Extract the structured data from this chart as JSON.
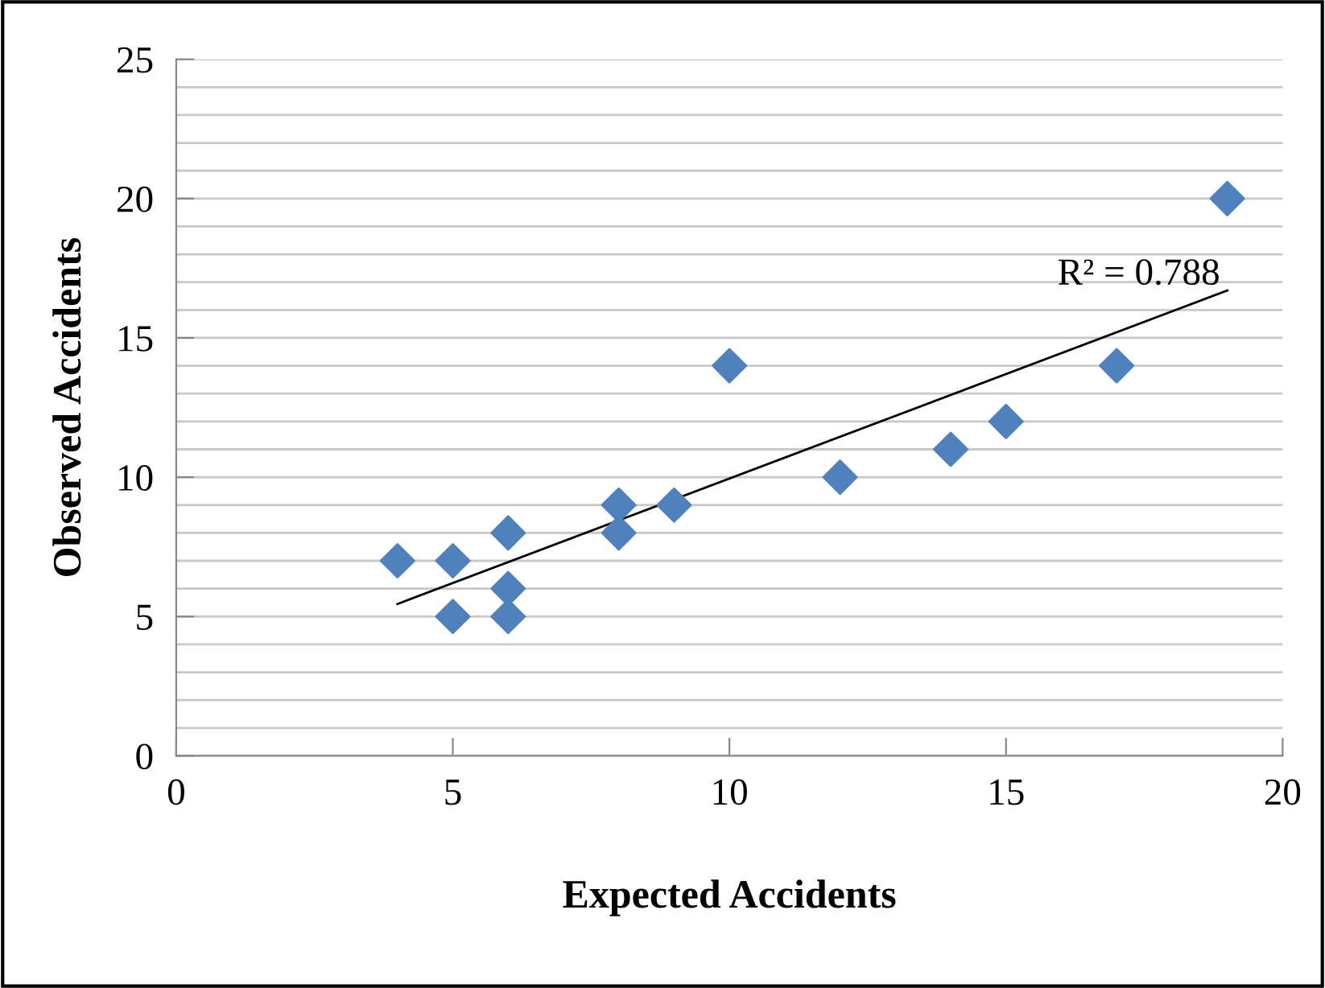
{
  "chart_data": {
    "type": "scatter",
    "xlabel": "Expected Accidents",
    "ylabel": "Observed Accidents",
    "x": [
      4,
      5,
      5,
      6,
      6,
      6,
      8,
      8,
      9,
      10,
      12,
      14,
      15,
      17,
      19
    ],
    "series": [
      {
        "color": "#4f81bd",
        "marker": "diamond",
        "values": [
          7,
          7,
          5,
          8,
          6,
          5,
          9,
          8,
          9,
          14,
          10,
          11,
          12,
          14,
          20
        ]
      },
      {
        "type": "line",
        "color": "#000000",
        "marker": "none",
        "x": [
          4,
          19
        ],
        "values": [
          5.45,
          16.7
        ]
      }
    ],
    "annotations": [
      "R² = 0.788"
    ],
    "xlim": [
      0,
      20
    ],
    "xticks": [
      0,
      5,
      10,
      15,
      20
    ],
    "ylim": [
      0,
      25
    ],
    "yticks": [
      0,
      {
        "value": 1,
        "label": null
      },
      {
        "value": 2,
        "label": null
      },
      {
        "value": 3,
        "label": null
      },
      {
        "value": 4,
        "label": null
      },
      5,
      {
        "value": 6,
        "label": null
      },
      {
        "value": 7,
        "label": null
      },
      {
        "value": 8,
        "label": null
      },
      {
        "value": 9,
        "label": null
      },
      10,
      {
        "value": 11,
        "label": null
      },
      {
        "value": 12,
        "label": null
      },
      {
        "value": 13,
        "label": null
      },
      {
        "value": 14,
        "label": null
      },
      15,
      {
        "value": 16,
        "label": null
      },
      {
        "value": 17,
        "label": null
      },
      {
        "value": 18,
        "label": null
      },
      {
        "value": 19,
        "label": null
      },
      20,
      {
        "value": 21,
        "label": null
      },
      {
        "value": 22,
        "label": null
      },
      {
        "value": 23,
        "label": null
      },
      {
        "value": 24,
        "label": null
      },
      25
    ],
    "grid": "y",
    "legend": false
  }
}
